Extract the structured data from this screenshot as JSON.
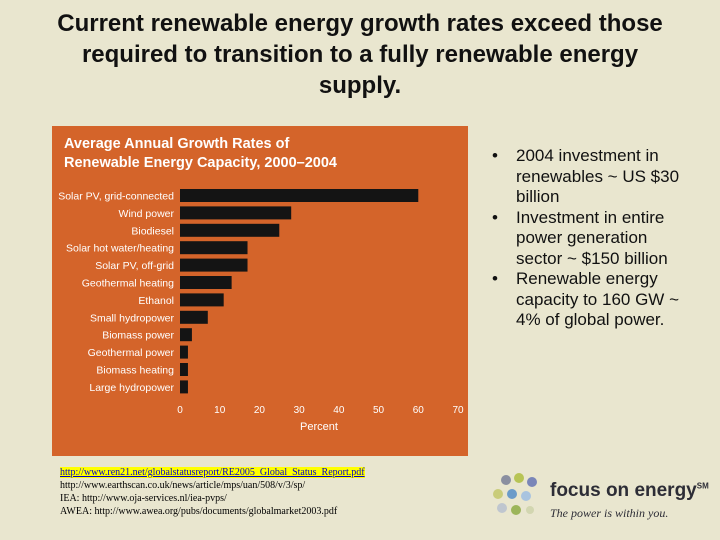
{
  "slide": {
    "title": "Current renewable energy growth rates exceed those required to transition to a fully renewable energy supply."
  },
  "chart_data": {
    "type": "bar",
    "orientation": "horizontal",
    "title": "Average Annual Growth Rates of",
    "subtitle": "Renewable Energy Capacity, 2000–2004",
    "xlabel": "Percent",
    "ylabel": "",
    "xlim": [
      0,
      70
    ],
    "xticks": [
      "0",
      "10",
      "20",
      "30",
      "40",
      "50",
      "60",
      "70"
    ],
    "grid": false,
    "categories": [
      "Solar PV, grid-connected",
      "Wind power",
      "Biodiesel",
      "Solar hot water/heating",
      "Solar PV, off-grid",
      "Geothermal heating",
      "Ethanol",
      "Small hydropower",
      "Biomass power",
      "Geothermal power",
      "Biomass heating",
      "Large hydropower"
    ],
    "values": [
      60,
      28,
      25,
      17,
      17,
      13,
      11,
      7,
      3,
      2,
      2,
      2
    ],
    "colors": {
      "background": "#d4642a",
      "bar": "#141414",
      "text": "#ffffff"
    }
  },
  "bullets": [
    "2004 investment in renewables ~ US $30 billion",
    "Investment in entire power generation sector ~ $150 billion",
    "Renewable energy capacity to 160 GW ~ 4% of global power."
  ],
  "sources": [
    "http://www.ren21.net/globalstatusreport/RE2005_Global_Status_Report.pdf",
    "http://www.earthscan.co.uk/news/article/mps/uan/508/v/3/sp/",
    "IEA: http://www.oja-services.nl/iea-pvps/",
    "AWEA: http://www.awea.org/pubs/documents/globalmarket2003.pdf"
  ],
  "logo": {
    "name": "focus on energy",
    "trademark": "SM",
    "tagline": "The power is within you."
  }
}
